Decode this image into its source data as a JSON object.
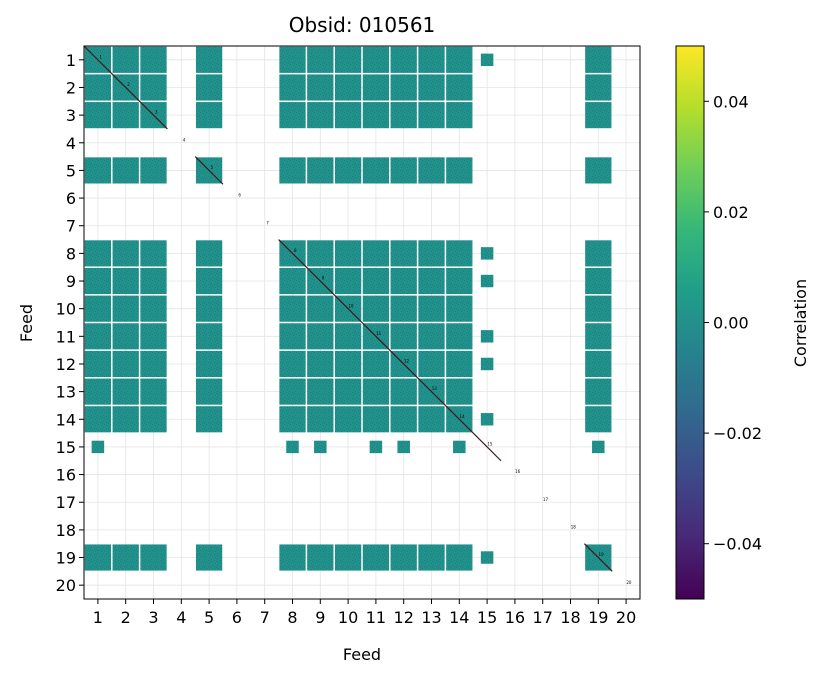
{
  "chart_data": {
    "type": "heatmap",
    "title": "Obsid: 010561",
    "xlabel": "Feed",
    "ylabel": "Feed",
    "feeds": [
      1,
      2,
      3,
      4,
      5,
      6,
      7,
      8,
      9,
      10,
      11,
      12,
      13,
      14,
      15,
      16,
      17,
      18,
      19,
      20
    ],
    "x_tick_labels": [
      "1",
      "2",
      "3",
      "4",
      "5",
      "6",
      "7",
      "8",
      "9",
      "10",
      "11",
      "12",
      "13",
      "14",
      "15",
      "16",
      "17",
      "18",
      "19",
      "20"
    ],
    "y_tick_labels": [
      "1",
      "2",
      "3",
      "4",
      "5",
      "6",
      "7",
      "8",
      "9",
      "10",
      "11",
      "12",
      "13",
      "14",
      "15",
      "16",
      "17",
      "18",
      "19",
      "20"
    ],
    "active_feeds": [
      1,
      2,
      3,
      5,
      8,
      9,
      10,
      11,
      12,
      13,
      14,
      19
    ],
    "partial_feed_15": {
      "row": 15,
      "cols_with_blocks": [
        1,
        8,
        9,
        11,
        12,
        14,
        19
      ]
    },
    "diagonal_labels": [
      "1",
      "2",
      "3",
      "4",
      "5",
      "6",
      "7",
      "8",
      "9",
      "10",
      "11",
      "12",
      "13",
      "14",
      "15",
      "16",
      "17",
      "18",
      "19",
      "20"
    ],
    "value_mean": 0.0,
    "grid": true,
    "colorbar": {
      "label": "Correlation",
      "colormap": "viridis",
      "vmin": -0.05,
      "vmax": 0.05,
      "ticks": [
        0.04,
        0.02,
        0.0,
        -0.02,
        -0.04
      ],
      "tick_labels": [
        "0.04",
        "0.02",
        "0.00",
        "−0.02",
        "−0.04"
      ],
      "colors": [
        "#440154",
        "#482878",
        "#3e4989",
        "#31688e",
        "#26828e",
        "#1f9e89",
        "#35b779",
        "#6ece58",
        "#b5de2b",
        "#fde725"
      ]
    },
    "cell_color": "#21918c",
    "cell_speckle_color": "#1c7f7b",
    "diagonal_color": "#3b1a1a"
  }
}
